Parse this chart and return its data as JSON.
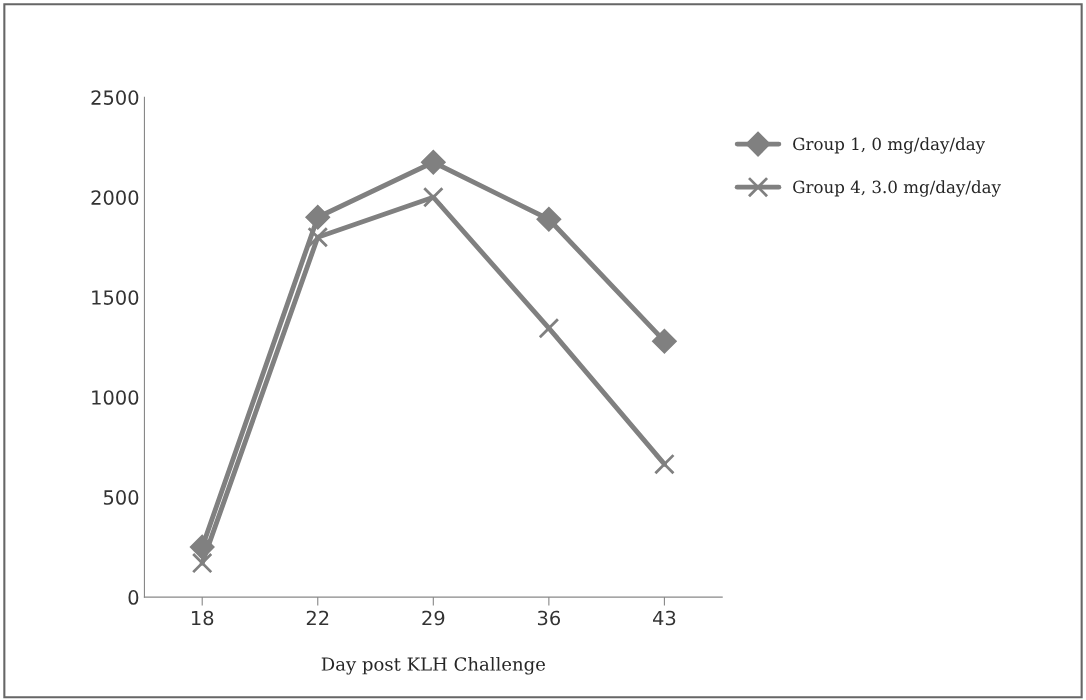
{
  "chart_data": {
    "type": "line",
    "xlabel": "Day post KLH Challenge",
    "categories": [
      "18",
      "22",
      "29",
      "36",
      "43"
    ],
    "series": [
      {
        "name": "Group 1, 0 mg/day/day",
        "color": "#808080",
        "marker": "diamond",
        "values": [
          250,
          1900,
          2175,
          1890,
          1280
        ]
      },
      {
        "name": "Group 4, 3.0 mg/day/day",
        "color": "#808080",
        "marker": "cross",
        "values": [
          170,
          1800,
          2000,
          1345,
          665
        ]
      }
    ],
    "ylim": [
      0,
      2500
    ],
    "yticks": [
      0,
      500,
      1000,
      1500,
      2000,
      2500
    ],
    "grid": false,
    "legend": "top right",
    "line_style": "solid"
  }
}
